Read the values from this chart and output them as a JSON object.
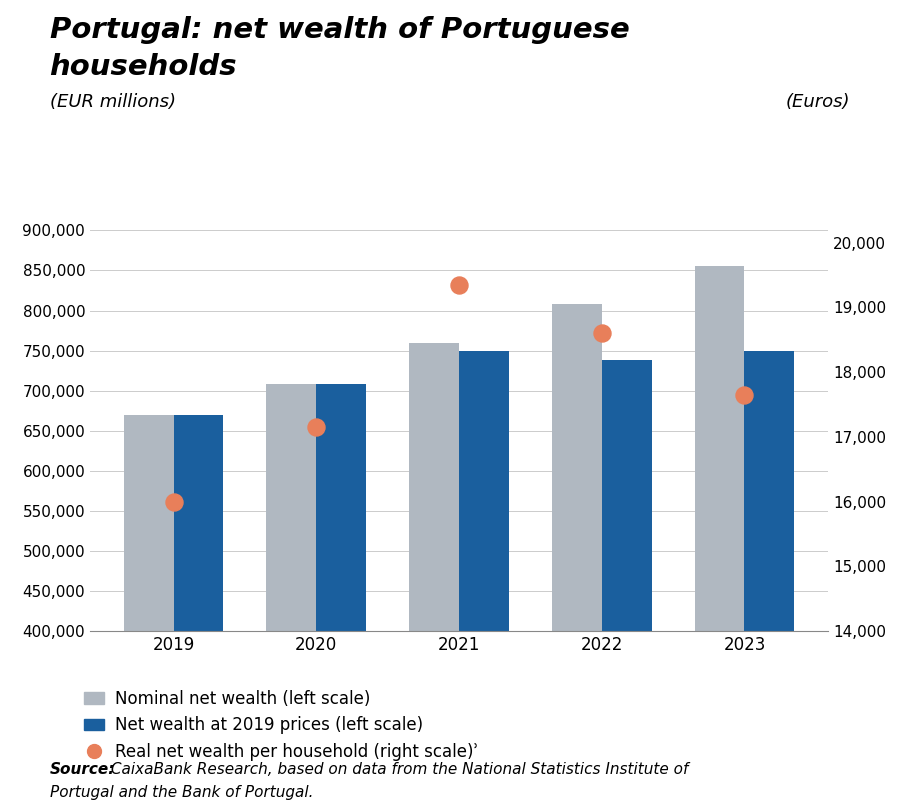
{
  "title_line1": "Portugal: net wealth of Portuguese",
  "title_line2": "households",
  "ylabel_left": "(EUR millions)",
  "ylabel_right": "(Euros)",
  "years": [
    2019,
    2020,
    2021,
    2022,
    2023
  ],
  "nominal_net_wealth": [
    670000,
    708000,
    760000,
    808000,
    855000
  ],
  "net_wealth_2019": [
    670000,
    708000,
    750000,
    738000,
    750000
  ],
  "real_net_wealth_per_hh": [
    16000,
    17150,
    19350,
    18600,
    17650
  ],
  "bar_color_nominal": "#b0b8c1",
  "bar_color_real2019": "#1a5f9e",
  "dot_color": "#e87f5a",
  "ylim_left": [
    400000,
    925000
  ],
  "ylim_right": [
    14000,
    20500
  ],
  "yticks_left": [
    400000,
    450000,
    500000,
    550000,
    600000,
    650000,
    700000,
    750000,
    800000,
    850000,
    900000
  ],
  "yticks_right": [
    14000,
    15000,
    16000,
    17000,
    18000,
    19000,
    20000
  ],
  "legend_nominal": "Nominal net wealth (left scale)",
  "legend_real2019": "Net wealth at 2019 prices (left scale)",
  "legend_dot": "Real net wealth per household (right scale)ʾ",
  "source_bold": "Source:",
  "source_line1": " CaixaBank Research, based on data from the National Statistics Institute of",
  "source_line2": "Portugal and the Bank of Portugal.",
  "background_color": "#ffffff",
  "bar_width": 0.35
}
